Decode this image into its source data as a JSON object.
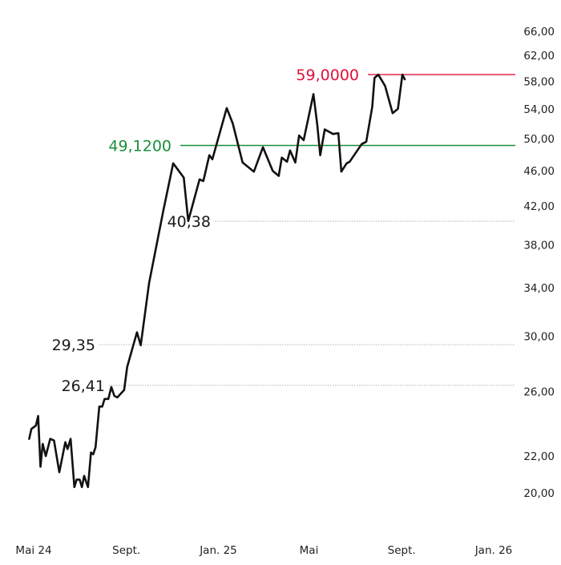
{
  "chart_data": {
    "type": "line",
    "title": "",
    "xlabel": "",
    "ylabel": "",
    "y_scale": "log",
    "ylim": [
      18.0,
      68.0
    ],
    "y_ticks": [
      "66,00",
      "62,00",
      "58,00",
      "54,00",
      "50,00",
      "46,00",
      "42,00",
      "38,00",
      "34,00",
      "30,00",
      "26,00",
      "22,00",
      "20,00"
    ],
    "x_ticks": [
      {
        "label": "Mai 24",
        "date": "2024-05-01"
      },
      {
        "label": "Sept.",
        "date": "2024-09-01"
      },
      {
        "label": "Jan. 25",
        "date": "2025-01-01"
      },
      {
        "label": "Mai",
        "date": "2025-05-01"
      },
      {
        "label": "Sept.",
        "date": "2025-09-01"
      },
      {
        "label": "Jan. 26",
        "date": "2026-01-01"
      }
    ],
    "grid": false,
    "colors": {
      "line": "#111111",
      "high": "#e0103a",
      "low": "#1a8f3c",
      "ref": "#9a9a9a"
    },
    "highlight_lines": [
      {
        "label": "59,0000",
        "value": 59.0,
        "color": "#e0103a"
      },
      {
        "label": "49,1200",
        "value": 49.12,
        "color": "#1a8f3c"
      }
    ],
    "reference_lines": [
      {
        "label": "40,38",
        "value": 40.38
      },
      {
        "label": "29,35",
        "value": 29.35
      },
      {
        "label": "26,41",
        "value": 26.41
      }
    ],
    "series": [
      {
        "points": [
          [
            "2024-04-25",
            23.0
          ],
          [
            "2024-04-28",
            23.6
          ],
          [
            "2024-05-04",
            23.8
          ],
          [
            "2024-05-07",
            24.4
          ],
          [
            "2024-05-10",
            21.4
          ],
          [
            "2024-05-13",
            22.7
          ],
          [
            "2024-05-17",
            22.0
          ],
          [
            "2024-05-23",
            23.0
          ],
          [
            "2024-05-28",
            22.9
          ],
          [
            "2024-06-04",
            21.1
          ],
          [
            "2024-06-12",
            22.8
          ],
          [
            "2024-06-15",
            22.4
          ],
          [
            "2024-06-19",
            23.0
          ],
          [
            "2024-06-24",
            20.3
          ],
          [
            "2024-06-27",
            20.7
          ],
          [
            "2024-07-01",
            20.7
          ],
          [
            "2024-07-04",
            20.3
          ],
          [
            "2024-07-07",
            20.9
          ],
          [
            "2024-07-12",
            20.3
          ],
          [
            "2024-07-16",
            22.2
          ],
          [
            "2024-07-19",
            22.1
          ],
          [
            "2024-07-22",
            22.5
          ],
          [
            "2024-07-27",
            25.0
          ],
          [
            "2024-07-31",
            25.0
          ],
          [
            "2024-08-03",
            25.5
          ],
          [
            "2024-08-08",
            25.5
          ],
          [
            "2024-08-12",
            26.3
          ],
          [
            "2024-08-16",
            25.7
          ],
          [
            "2024-08-20",
            25.6
          ],
          [
            "2024-08-29",
            26.1
          ],
          [
            "2024-09-02",
            27.7
          ],
          [
            "2024-09-15",
            30.3
          ],
          [
            "2024-09-20",
            29.3
          ],
          [
            "2024-10-01",
            34.4
          ],
          [
            "2024-10-20",
            41.5
          ],
          [
            "2024-11-02",
            46.9
          ],
          [
            "2024-11-16",
            45.2
          ],
          [
            "2024-11-22",
            40.4
          ],
          [
            "2024-12-07",
            45.0
          ],
          [
            "2024-12-12",
            44.8
          ],
          [
            "2024-12-20",
            47.9
          ],
          [
            "2024-12-24",
            47.4
          ],
          [
            "2025-01-12",
            54.1
          ],
          [
            "2025-01-20",
            52.0
          ],
          [
            "2025-02-02",
            47.0
          ],
          [
            "2025-02-17",
            45.9
          ],
          [
            "2025-03-01",
            48.9
          ],
          [
            "2025-03-14",
            46.0
          ],
          [
            "2025-03-22",
            45.4
          ],
          [
            "2025-03-26",
            47.6
          ],
          [
            "2025-04-02",
            47.1
          ],
          [
            "2025-04-06",
            48.5
          ],
          [
            "2025-04-13",
            47.0
          ],
          [
            "2025-04-18",
            50.4
          ],
          [
            "2025-04-24",
            49.8
          ],
          [
            "2025-05-07",
            56.1
          ],
          [
            "2025-05-12",
            51.9
          ],
          [
            "2025-05-16",
            47.9
          ],
          [
            "2025-05-22",
            51.2
          ],
          [
            "2025-06-02",
            50.6
          ],
          [
            "2025-06-09",
            50.7
          ],
          [
            "2025-06-13",
            45.9
          ],
          [
            "2025-06-20",
            46.9
          ],
          [
            "2025-06-24",
            47.1
          ],
          [
            "2025-07-10",
            49.3
          ],
          [
            "2025-07-16",
            49.6
          ],
          [
            "2025-07-24",
            54.3
          ],
          [
            "2025-07-27",
            58.5
          ],
          [
            "2025-08-01",
            59.0
          ],
          [
            "2025-08-10",
            57.3
          ],
          [
            "2025-08-20",
            53.4
          ],
          [
            "2025-08-27",
            54.0
          ],
          [
            "2025-09-02",
            59.0
          ],
          [
            "2025-09-05",
            58.3
          ]
        ]
      }
    ]
  }
}
